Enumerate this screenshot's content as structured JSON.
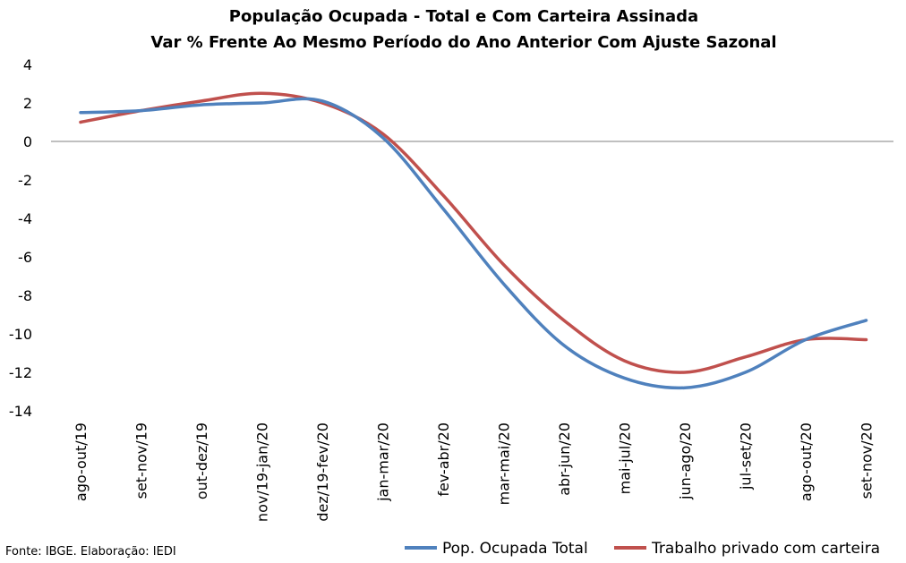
{
  "chart_data": {
    "type": "line",
    "title": "População Ocupada - Total e Com Carteira Assinada",
    "subtitle": "Var % Frente Ao Mesmo Período do Ano Anterior Com Ajuste Sazonal",
    "categories": [
      "ago-out/19",
      "set-nov/19",
      "out-dez/19",
      "nov/19-jan/20",
      "dez/19-fev/20",
      "jan-mar/20",
      "fev-abr/20",
      "mar-mai/20",
      "abr-jun/20",
      "mai-jul/20",
      "jun-ago/20",
      "jul-set/20",
      "ago-out/20",
      "set-nov/20"
    ],
    "series": [
      {
        "name": "Pop. Ocupada Total",
        "color": "#4f81bd",
        "values": [
          1.5,
          1.6,
          1.9,
          2.0,
          2.1,
          0.2,
          -3.5,
          -7.4,
          -10.6,
          -12.3,
          -12.8,
          -12.0,
          -10.3,
          -9.3
        ]
      },
      {
        "name": "Trabalho privado com carteira",
        "color": "#c0504d",
        "values": [
          1.0,
          1.6,
          2.1,
          2.5,
          2.0,
          0.4,
          -2.8,
          -6.4,
          -9.3,
          -11.4,
          -12.0,
          -11.2,
          -10.3,
          -10.3
        ]
      }
    ],
    "yticks": [
      4,
      2,
      0,
      -2,
      -4,
      -6,
      -8,
      -10,
      -12,
      -14
    ],
    "ylim": [
      -14,
      4
    ],
    "grid": false,
    "legend": "bottom-right"
  },
  "source": "Fonte: IBGE. Elaboração: IEDI"
}
